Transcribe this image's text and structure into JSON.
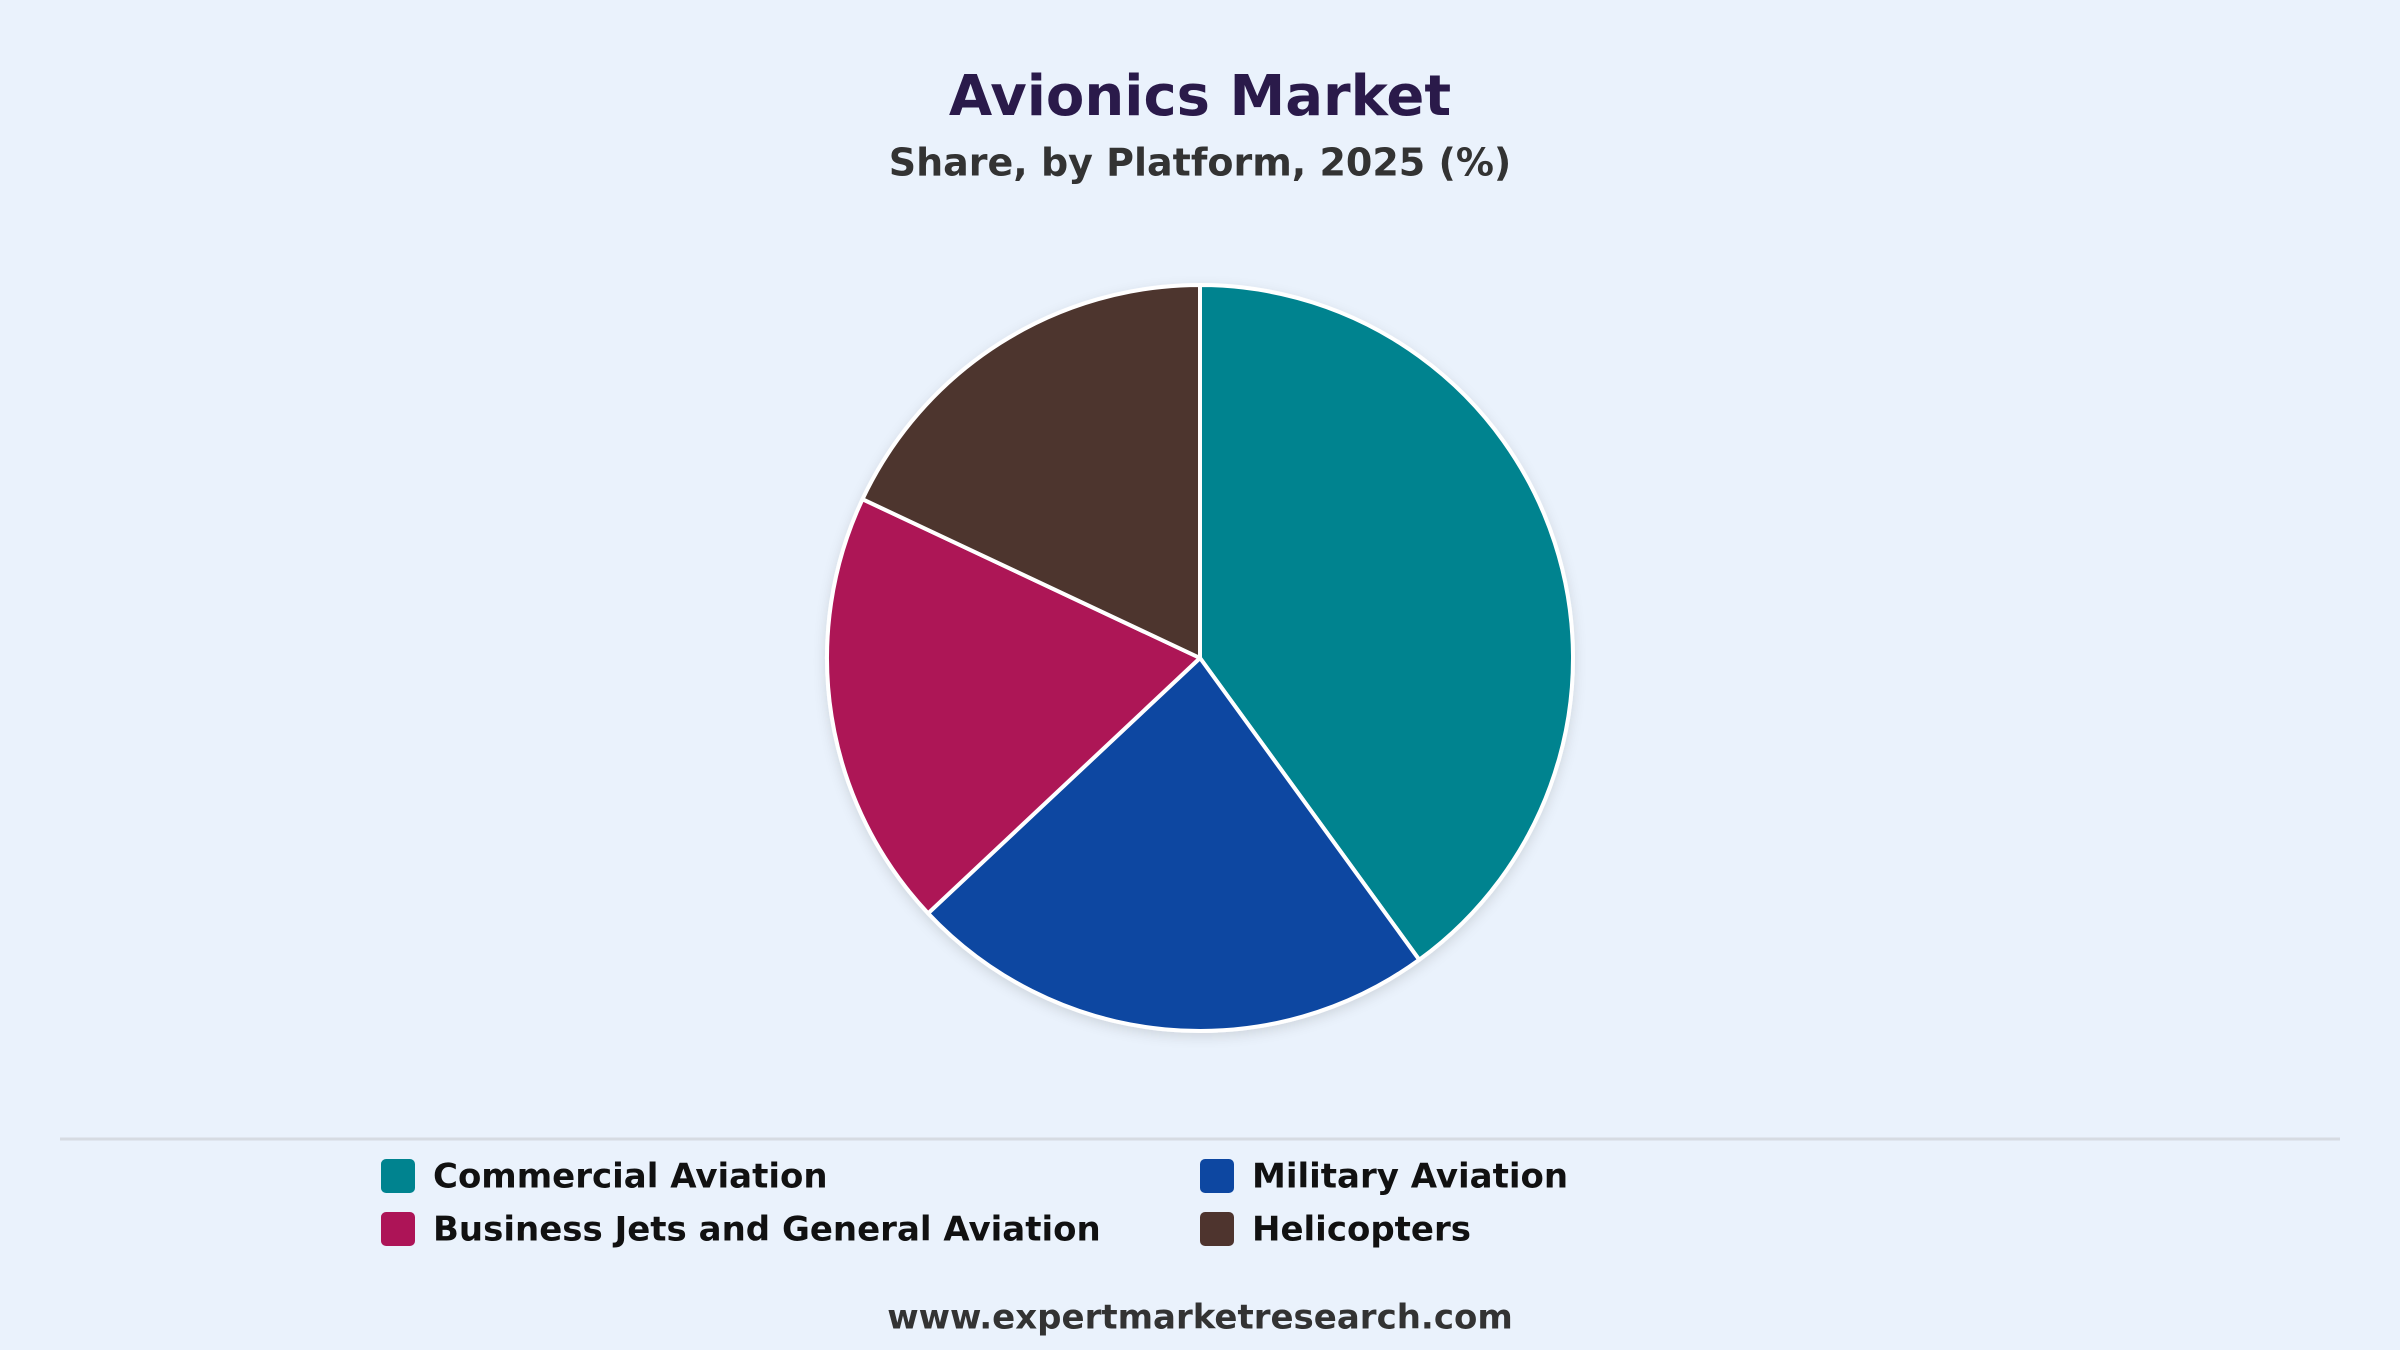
{
  "chart_data": {
    "type": "pie",
    "title": "Avionics Market",
    "subtitle": "Share, by Platform, 2025 (%)",
    "categories": [
      "Commercial Aviation",
      "Military Aviation",
      "Business Jets and General Aviation",
      "Helicopters"
    ],
    "values": [
      40,
      23,
      19,
      18
    ],
    "colors": [
      "#00838f",
      "#0d47a1",
      "#ad1457",
      "#4e342e"
    ],
    "legend": "bottom",
    "footer": "www.expertmarketresearch.com"
  }
}
